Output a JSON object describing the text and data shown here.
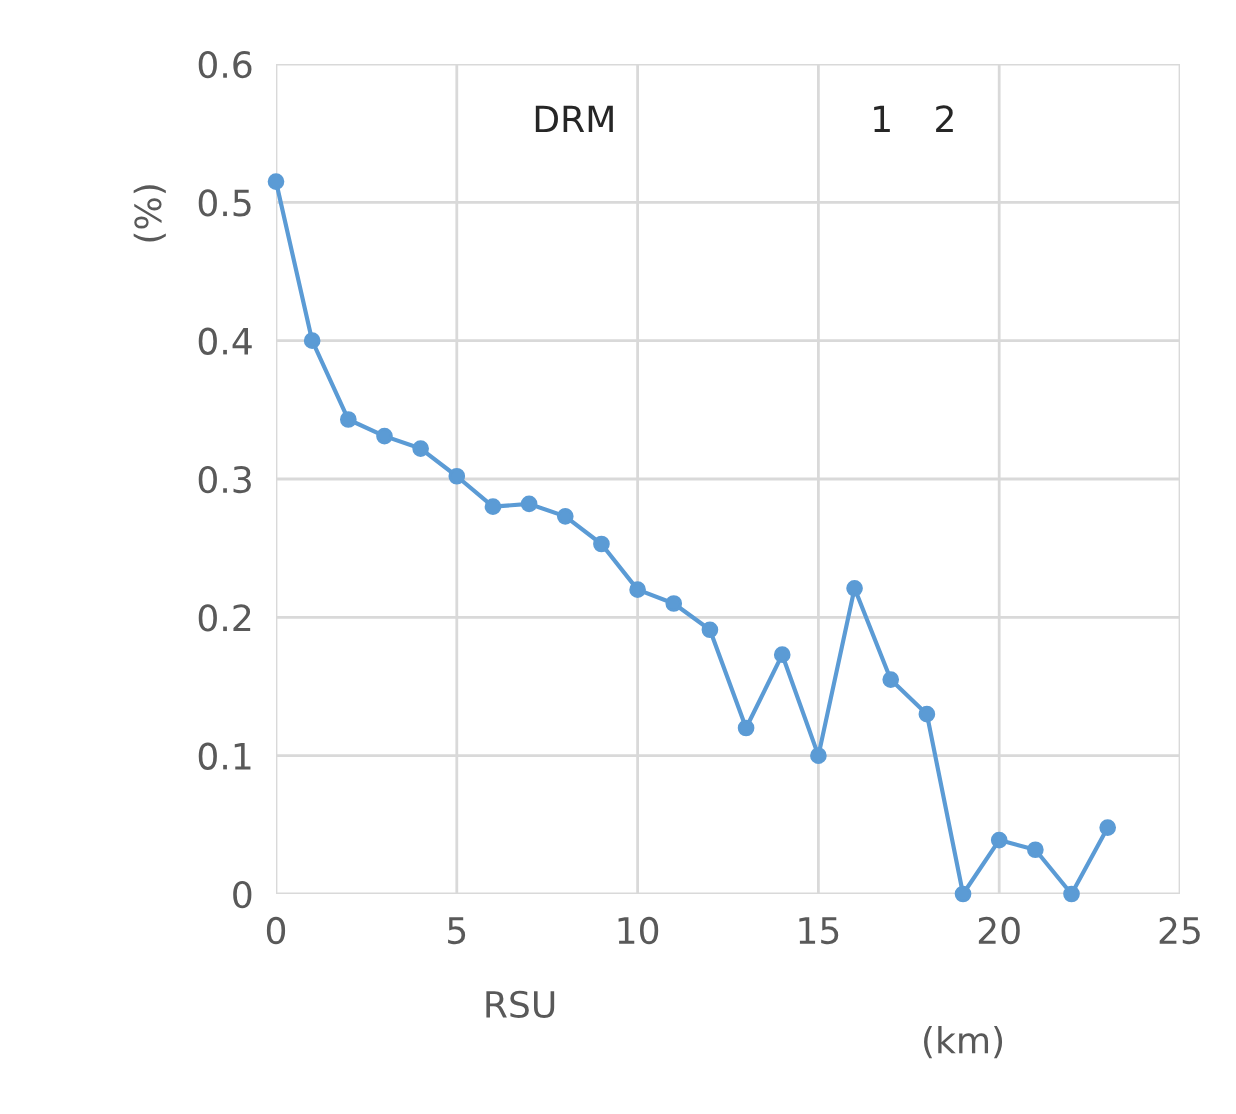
{
  "chart_data": {
    "type": "line",
    "ylabel": "(%)",
    "xlabel": "RSU",
    "annotations": [
      "DRM",
      "1",
      "2",
      "(km)"
    ],
    "x": [
      0,
      1,
      2,
      3,
      4,
      5,
      6,
      7,
      8,
      9,
      10,
      11,
      12,
      13,
      14,
      15,
      16,
      17,
      18,
      19,
      20,
      21,
      22,
      23
    ],
    "series": [
      {
        "color": "#5b9bd5",
        "values": [
          0.515,
          0.4,
          0.343,
          0.331,
          0.322,
          0.302,
          0.28,
          0.282,
          0.273,
          0.253,
          0.22,
          0.21,
          0.191,
          0.12,
          0.173,
          0.1,
          0.221,
          0.155,
          0.13,
          0.0,
          0.039,
          0.032,
          0.0,
          0.048
        ]
      }
    ],
    "xlim": [
      0,
      25
    ],
    "xticks": [
      0,
      5,
      10,
      15,
      20,
      25
    ],
    "ylim": [
      0,
      0.6
    ],
    "yticks": [
      0,
      0.1,
      0.2,
      0.3,
      0.4,
      0.5,
      0.6
    ],
    "grid": true,
    "marker": "circle",
    "line_style": "solid"
  }
}
